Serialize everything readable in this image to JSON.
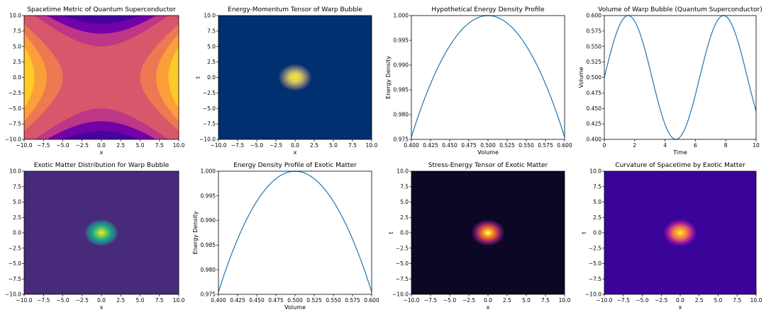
{
  "colors": {
    "plasma": [
      "#0d0887",
      "#46039f",
      "#7201a8",
      "#9c179e",
      "#bd3786",
      "#d8576b",
      "#ed7953",
      "#fb9f3a",
      "#fdca26",
      "#f0f921"
    ],
    "cividis_bg": "#00306f",
    "cividis_peak": "#fde737",
    "viridis_bg": "#472a7a",
    "viridis_peak": "#fde725",
    "inferno_bg": "#0b0724",
    "inferno_peak": "#fcffa4",
    "plasma_bg": "#3a049a",
    "plasma_peak": "#f0f921",
    "line": "#1f77b4"
  },
  "chart_data": [
    {
      "id": "p1",
      "type": "heatmap",
      "colormap": "plasma",
      "field": "hyperbolic",
      "title": "Spacetime Metric of Quantum Superconductor",
      "xlabel": "x",
      "ylabel": "",
      "xlim": [
        -10,
        10
      ],
      "ylim": [
        -10,
        10
      ],
      "xticks": [
        "−10.0",
        "−7.5",
        "−5.0",
        "−2.5",
        "0.0",
        "2.5",
        "5.0",
        "7.5",
        "10.0"
      ],
      "yticks": [
        "10.0",
        "7.5",
        "5.0",
        "2.5",
        "0.0",
        "−2.5",
        "−5.0",
        "−7.5",
        "−10.0"
      ]
    },
    {
      "id": "p2",
      "type": "heatmap",
      "colormap": "cividis",
      "field": "gaussian",
      "title": "Energy-Momentum Tensor of Warp Bubble",
      "xlabel": "x",
      "ylabel": "t",
      "xlim": [
        -10,
        10
      ],
      "ylim": [
        -10,
        10
      ],
      "peak": [
        0,
        0
      ],
      "xticks": [
        "−10.0",
        "−7.5",
        "−5.0",
        "−2.5",
        "0.0",
        "2.5",
        "5.0",
        "7.5",
        "10.0"
      ],
      "yticks": [
        "10.0",
        "7.5",
        "5.0",
        "2.5",
        "0.0",
        "−2.5",
        "−5.0",
        "−7.5",
        "−10.0"
      ]
    },
    {
      "id": "p3",
      "type": "line",
      "title": "Hypothetical Energy Density Profile",
      "xlabel": "Volume",
      "ylabel": "Energy Density",
      "xlim": [
        0.4,
        0.6
      ],
      "ylim": [
        0.975,
        1.0
      ],
      "x": [
        0.4,
        0.425,
        0.45,
        0.475,
        0.5,
        0.525,
        0.55,
        0.575,
        0.6
      ],
      "y": [
        0.9755,
        0.9862,
        0.9938,
        0.9985,
        1.0,
        0.9985,
        0.9938,
        0.9862,
        0.9755
      ],
      "xticks": [
        "0.400",
        "0.425",
        "0.450",
        "0.475",
        "0.500",
        "0.525",
        "0.550",
        "0.575",
        "0.600"
      ],
      "yticks": [
        "1.000",
        "0.995",
        "0.990",
        "0.985",
        "0.980",
        "0.975"
      ]
    },
    {
      "id": "p4",
      "type": "line",
      "title": "Volume of Warp Bubble (Quantum Superconductor)",
      "xlabel": "Time",
      "ylabel": "Volume",
      "xlim": [
        0,
        10
      ],
      "ylim": [
        0.4,
        0.6
      ],
      "x": [
        0,
        1,
        1.57,
        2,
        3,
        4,
        4.71,
        5,
        6,
        7,
        7.85,
        8,
        9,
        10
      ],
      "y": [
        0.5,
        0.584,
        0.6,
        0.591,
        0.514,
        0.424,
        0.4,
        0.404,
        0.472,
        0.566,
        0.6,
        0.599,
        0.541,
        0.446
      ],
      "xticks": [
        "0",
        "2",
        "4",
        "6",
        "8",
        "10"
      ],
      "yticks": [
        "0.600",
        "0.575",
        "0.550",
        "0.525",
        "0.500",
        "0.475",
        "0.450",
        "0.425",
        "0.400"
      ]
    },
    {
      "id": "p5",
      "type": "heatmap",
      "colormap": "viridis",
      "field": "gaussian",
      "title": "Exotic Matter Distribution for Warp Bubble",
      "xlabel": "x",
      "ylabel": "",
      "xlim": [
        -10,
        10
      ],
      "ylim": [
        -10,
        10
      ],
      "peak": [
        0,
        0
      ],
      "xticks": [
        "−10.0",
        "−7.5",
        "−5.0",
        "−2.5",
        "0.0",
        "2.5",
        "5.0",
        "7.5",
        "10.0"
      ],
      "yticks": [
        "10.0",
        "7.5",
        "5.0",
        "2.5",
        "0.0",
        "−2.5",
        "−5.0",
        "−7.5",
        "−10.0"
      ]
    },
    {
      "id": "p6",
      "type": "line",
      "title": "Energy Density Profile of Exotic Matter",
      "xlabel": "Volume",
      "ylabel": "Energy Density",
      "xlim": [
        0.4,
        0.6
      ],
      "ylim": [
        0.975,
        1.0
      ],
      "x": [
        0.4,
        0.425,
        0.45,
        0.475,
        0.5,
        0.525,
        0.55,
        0.575,
        0.6
      ],
      "y": [
        0.9755,
        0.9862,
        0.9938,
        0.9985,
        1.0,
        0.9985,
        0.9938,
        0.9862,
        0.9755
      ],
      "xticks": [
        "0.400",
        "0.425",
        "0.450",
        "0.475",
        "0.500",
        "0.525",
        "0.550",
        "0.575",
        "0.600"
      ],
      "yticks": [
        "1.000",
        "0.995",
        "0.990",
        "0.985",
        "0.980",
        "0.975"
      ]
    },
    {
      "id": "p7",
      "type": "heatmap",
      "colormap": "inferno",
      "field": "gaussian",
      "title": "Stress-Energy Tensor of Exotic Matter",
      "xlabel": "x",
      "ylabel": "t",
      "xlim": [
        -10,
        10
      ],
      "ylim": [
        -10,
        10
      ],
      "peak": [
        0,
        0
      ],
      "xticks": [
        "−10.0",
        "−7.5",
        "−5.0",
        "−2.5",
        "0.0",
        "2.5",
        "5.0",
        "7.5",
        "10.0"
      ],
      "yticks": [
        "10.0",
        "7.5",
        "5.0",
        "2.5",
        "0.0",
        "−2.5",
        "−5.0",
        "−7.5",
        "−10.0"
      ]
    },
    {
      "id": "p8",
      "type": "heatmap",
      "colormap": "plasma",
      "field": "gaussian",
      "title": "Curvature of Spacetime by Exotic Matter",
      "xlabel": "x",
      "ylabel": "t",
      "xlim": [
        -10,
        10
      ],
      "ylim": [
        -10,
        10
      ],
      "peak": [
        0,
        0
      ],
      "xticks": [
        "−10.0",
        "−7.5",
        "−5.0",
        "−2.5",
        "0.0",
        "2.5",
        "5.0",
        "7.5",
        "10.0"
      ],
      "yticks": [
        "10.0",
        "7.5",
        "5.0",
        "2.5",
        "0.0",
        "−2.5",
        "−5.0",
        "−7.5",
        "−10.0"
      ]
    }
  ]
}
